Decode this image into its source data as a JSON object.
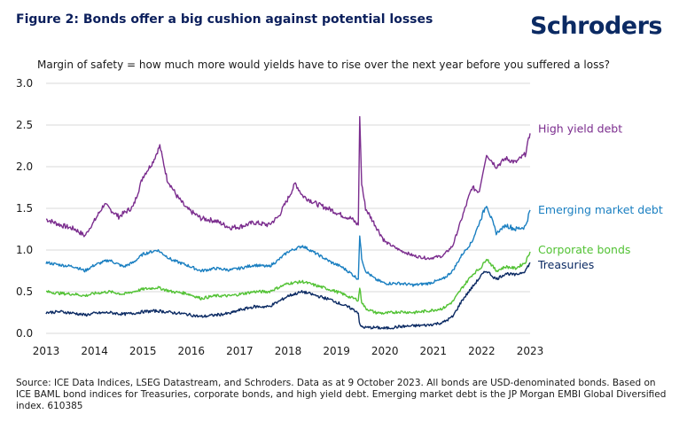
{
  "header": {
    "title": "Figure 2: Bonds offer a big cushion against potential losses",
    "brand": "Schroders"
  },
  "footer": {
    "source": "Source: ICE Data Indices, LSEG Datastream, and Schroders. Data as at 9 October 2023. All bonds are USD-denominated bonds. Based on ICE BAML bond indices for Treasuries, corporate bonds, and high yield debt. Emerging market debt is the JP Morgan EMBI Global Diversified index. 610385"
  },
  "colors": {
    "title": "#0b1f5c",
    "brand": "#0b2a63",
    "grid": "#d9d9d9"
  },
  "chart_data": {
    "type": "line",
    "title": "Margin of safety = how much more would yields have to rise over the next year before you suffered a loss?",
    "xlabel": "",
    "ylabel": "",
    "ylim": [
      0,
      3.0
    ],
    "xlim": [
      2013,
      2023
    ],
    "y_ticks": [
      "0.0",
      "0.5",
      "1.0",
      "1.5",
      "2.0",
      "2.5",
      "3.0"
    ],
    "x_ticks": [
      "2013",
      "2014",
      "2015",
      "2016",
      "2017",
      "2018",
      "2019",
      "2020",
      "2021",
      "2022",
      "2023"
    ],
    "grid": "horizontal",
    "legend": "direct labels at right end of lines",
    "series": [
      {
        "name": "High yield debt",
        "color": "#7b2d8e",
        "x": [
          2013.0,
          2013.3,
          2013.6,
          2013.8,
          2014.0,
          2014.2,
          2014.5,
          2014.8,
          2015.0,
          2015.2,
          2015.35,
          2015.5,
          2015.7,
          2015.9,
          2016.2,
          2016.5,
          2016.8,
          2017.0,
          2017.3,
          2017.6,
          2017.8,
          2018.0,
          2018.15,
          2018.3,
          2018.6,
          2018.9,
          2019.1,
          2019.3,
          2019.45,
          2019.48,
          2019.52,
          2019.6,
          2019.8,
          2020.0,
          2020.3,
          2020.6,
          2020.9,
          2021.2,
          2021.4,
          2021.6,
          2021.8,
          2021.95,
          2022.1,
          2022.3,
          2022.5,
          2022.7,
          2022.9,
          2023.0
        ],
        "y": [
          1.37,
          1.3,
          1.25,
          1.17,
          1.35,
          1.55,
          1.4,
          1.52,
          1.88,
          2.05,
          2.25,
          1.85,
          1.65,
          1.5,
          1.38,
          1.35,
          1.27,
          1.28,
          1.33,
          1.3,
          1.4,
          1.62,
          1.8,
          1.65,
          1.55,
          1.48,
          1.42,
          1.38,
          1.3,
          2.6,
          1.8,
          1.5,
          1.3,
          1.1,
          1.0,
          0.93,
          0.9,
          0.93,
          1.05,
          1.4,
          1.75,
          1.7,
          2.15,
          2.0,
          2.1,
          2.05,
          2.15,
          2.4
        ]
      },
      {
        "name": "Emerging market debt",
        "color": "#1a7fc1",
        "x": [
          2013.0,
          2013.3,
          2013.6,
          2013.8,
          2014.0,
          2014.3,
          2014.6,
          2014.8,
          2015.0,
          2015.3,
          2015.6,
          2015.9,
          2016.2,
          2016.5,
          2016.8,
          2017.0,
          2017.3,
          2017.6,
          2017.8,
          2018.0,
          2018.3,
          2018.6,
          2018.9,
          2019.1,
          2019.3,
          2019.45,
          2019.48,
          2019.52,
          2019.6,
          2019.8,
          2020.0,
          2020.3,
          2020.6,
          2020.9,
          2021.2,
          2021.4,
          2021.6,
          2021.8,
          2022.0,
          2022.1,
          2022.3,
          2022.5,
          2022.7,
          2022.9,
          2023.0
        ],
        "y": [
          0.85,
          0.82,
          0.8,
          0.75,
          0.82,
          0.88,
          0.8,
          0.85,
          0.95,
          1.0,
          0.88,
          0.82,
          0.75,
          0.78,
          0.76,
          0.78,
          0.82,
          0.8,
          0.88,
          0.98,
          1.05,
          0.95,
          0.85,
          0.8,
          0.72,
          0.65,
          1.18,
          0.9,
          0.75,
          0.65,
          0.6,
          0.6,
          0.58,
          0.6,
          0.65,
          0.75,
          0.95,
          1.1,
          1.4,
          1.55,
          1.2,
          1.3,
          1.25,
          1.28,
          1.48
        ]
      },
      {
        "name": "Corporate bonds",
        "color": "#52c234",
        "x": [
          2013.0,
          2013.3,
          2013.6,
          2013.8,
          2014.0,
          2014.3,
          2014.6,
          2014.8,
          2015.0,
          2015.3,
          2015.6,
          2015.9,
          2016.2,
          2016.5,
          2016.8,
          2017.0,
          2017.3,
          2017.6,
          2017.8,
          2018.0,
          2018.3,
          2018.6,
          2018.9,
          2019.1,
          2019.3,
          2019.45,
          2019.48,
          2019.52,
          2019.6,
          2019.8,
          2020.0,
          2020.3,
          2020.6,
          2020.9,
          2021.2,
          2021.4,
          2021.6,
          2021.8,
          2022.0,
          2022.1,
          2022.3,
          2022.5,
          2022.7,
          2022.9,
          2023.0
        ],
        "y": [
          0.5,
          0.48,
          0.47,
          0.45,
          0.48,
          0.5,
          0.47,
          0.5,
          0.53,
          0.55,
          0.5,
          0.48,
          0.42,
          0.45,
          0.45,
          0.47,
          0.5,
          0.5,
          0.55,
          0.6,
          0.62,
          0.57,
          0.52,
          0.48,
          0.43,
          0.4,
          0.55,
          0.38,
          0.3,
          0.25,
          0.24,
          0.26,
          0.25,
          0.27,
          0.3,
          0.38,
          0.55,
          0.7,
          0.8,
          0.9,
          0.75,
          0.8,
          0.78,
          0.85,
          0.98
        ]
      },
      {
        "name": "Treasuries",
        "color": "#0b2a63",
        "x": [
          2013.0,
          2013.3,
          2013.6,
          2013.8,
          2014.0,
          2014.3,
          2014.6,
          2014.8,
          2015.0,
          2015.3,
          2015.6,
          2015.9,
          2016.2,
          2016.5,
          2016.8,
          2017.0,
          2017.3,
          2017.6,
          2017.8,
          2018.0,
          2018.3,
          2018.6,
          2018.9,
          2019.1,
          2019.3,
          2019.45,
          2019.48,
          2019.52,
          2019.6,
          2019.8,
          2020.0,
          2020.3,
          2020.6,
          2020.9,
          2021.2,
          2021.4,
          2021.6,
          2021.8,
          2022.0,
          2022.1,
          2022.3,
          2022.5,
          2022.7,
          2022.9,
          2023.0
        ],
        "y": [
          0.25,
          0.26,
          0.24,
          0.22,
          0.24,
          0.25,
          0.23,
          0.24,
          0.26,
          0.27,
          0.25,
          0.23,
          0.2,
          0.22,
          0.24,
          0.28,
          0.32,
          0.32,
          0.38,
          0.45,
          0.5,
          0.45,
          0.4,
          0.35,
          0.3,
          0.25,
          0.1,
          0.08,
          0.07,
          0.07,
          0.06,
          0.08,
          0.09,
          0.1,
          0.13,
          0.2,
          0.4,
          0.55,
          0.7,
          0.75,
          0.65,
          0.72,
          0.7,
          0.75,
          0.85
        ]
      }
    ]
  }
}
